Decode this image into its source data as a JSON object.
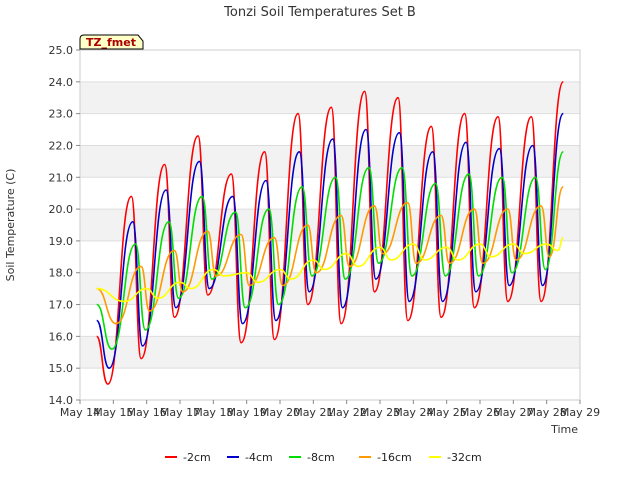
{
  "chart_data": {
    "type": "line",
    "title": "Tonzi Soil Temperatures Set B",
    "xlabel": "Time",
    "ylabel": "Soil Temperature (C)",
    "xlim": [
      "May 14",
      "May 29"
    ],
    "ylim": [
      14.0,
      25.0
    ],
    "x_ticks": [
      "May 14",
      "May 15",
      "May 16",
      "May 17",
      "May 18",
      "May 19",
      "May 20",
      "May 21",
      "May 22",
      "May 23",
      "May 24",
      "May 25",
      "May 26",
      "May 27",
      "May 28",
      "May 29"
    ],
    "y_ticks": [
      "14.0",
      "15.0",
      "16.0",
      "17.0",
      "18.0",
      "19.0",
      "20.0",
      "21.0",
      "22.0",
      "23.0",
      "24.0",
      "25.0"
    ],
    "grid": "horizontal bands",
    "legend_position": "bottom",
    "annotation": "TZ_fmet",
    "data_start": "May 14 12:00",
    "data_end": "May 28 12:00",
    "series": [
      {
        "name": "-2cm",
        "color": "#ff0000",
        "t": [
          "May 14 12:00",
          "May 14 20:00",
          "May 15 13:00",
          "May 15 20:00",
          "May 16 13:00",
          "May 16 20:00",
          "May 17 13:00",
          "May 17 20:00",
          "May 18 13:00",
          "May 18 20:00",
          "May 19 13:00",
          "May 19 20:00",
          "May 20 13:00",
          "May 20 20:00",
          "May 21 13:00",
          "May 21 20:00",
          "May 22 13:00",
          "May 22 20:00",
          "May 23 13:00",
          "May 23 20:00",
          "May 24 13:00",
          "May 24 20:00",
          "May 25 13:00",
          "May 25 20:00",
          "May 26 13:00",
          "May 26 20:00",
          "May 27 13:00",
          "May 27 20:00",
          "May 28 12:00"
        ],
        "v": [
          16.0,
          14.5,
          20.4,
          15.3,
          21.4,
          16.6,
          22.3,
          17.3,
          21.1,
          15.8,
          21.8,
          15.9,
          23.0,
          17.0,
          23.2,
          16.4,
          23.7,
          17.4,
          23.5,
          16.5,
          22.6,
          16.6,
          23.0,
          16.9,
          22.9,
          17.1,
          22.9,
          17.1,
          24.0
        ]
      },
      {
        "name": "-4cm",
        "color": "#0000cc",
        "t": [
          "May 14 12:00",
          "May 14 21:00",
          "May 15 14:00",
          "May 15 21:00",
          "May 16 14:00",
          "May 16 21:00",
          "May 17 14:00",
          "May 17 21:00",
          "May 18 14:00",
          "May 18 21:00",
          "May 19 14:00",
          "May 19 21:00",
          "May 20 14:00",
          "May 20 21:00",
          "May 21 14:00",
          "May 21 21:00",
          "May 22 14:00",
          "May 22 21:00",
          "May 23 14:00",
          "May 23 21:00",
          "May 24 14:00",
          "May 24 21:00",
          "May 25 14:00",
          "May 25 21:00",
          "May 26 14:00",
          "May 26 21:00",
          "May 27 14:00",
          "May 27 21:00",
          "May 28 12:00"
        ],
        "v": [
          16.5,
          15.0,
          19.6,
          15.7,
          20.6,
          16.9,
          21.5,
          17.5,
          20.4,
          16.4,
          20.9,
          16.5,
          21.8,
          17.4,
          22.2,
          16.9,
          22.5,
          17.8,
          22.4,
          17.1,
          21.8,
          17.1,
          22.1,
          17.4,
          21.9,
          17.6,
          22.0,
          17.6,
          23.0
        ]
      },
      {
        "name": "-8cm",
        "color": "#00dd00",
        "t": [
          "May 14 12:00",
          "May 14 23:00",
          "May 15 16:00",
          "May 15 23:00",
          "May 16 16:00",
          "May 16 23:00",
          "May 17 16:00",
          "May 17 23:00",
          "May 18 16:00",
          "May 18 23:00",
          "May 19 16:00",
          "May 19 23:00",
          "May 20 16:00",
          "May 20 23:00",
          "May 21 16:00",
          "May 21 23:00",
          "May 22 16:00",
          "May 22 23:00",
          "May 23 16:00",
          "May 23 23:00",
          "May 24 16:00",
          "May 24 23:00",
          "May 25 16:00",
          "May 25 23:00",
          "May 26 16:00",
          "May 26 23:00",
          "May 27 16:00",
          "May 27 23:00",
          "May 28 12:00"
        ],
        "v": [
          17.0,
          15.6,
          18.9,
          16.2,
          19.6,
          17.2,
          20.4,
          17.8,
          19.9,
          16.9,
          20.0,
          17.0,
          20.7,
          17.9,
          21.0,
          17.8,
          21.3,
          18.3,
          21.3,
          17.9,
          20.8,
          17.9,
          21.1,
          17.9,
          21.0,
          18.0,
          21.0,
          18.1,
          21.8
        ]
      },
      {
        "name": "-16cm",
        "color": "#ff9900",
        "t": [
          "May 14 12:00",
          "May 15 02:00",
          "May 15 20:00",
          "May 16 02:00",
          "May 16 20:00",
          "May 17 02:00",
          "May 17 20:00",
          "May 18 02:00",
          "May 18 20:00",
          "May 19 02:00",
          "May 19 20:00",
          "May 20 02:00",
          "May 20 20:00",
          "May 21 02:00",
          "May 21 20:00",
          "May 22 02:00",
          "May 22 20:00",
          "May 23 02:00",
          "May 23 20:00",
          "May 24 02:00",
          "May 24 20:00",
          "May 25 02:00",
          "May 25 20:00",
          "May 26 02:00",
          "May 26 20:00",
          "May 27 02:00",
          "May 27 20:00",
          "May 28 02:00",
          "May 28 12:00"
        ],
        "v": [
          17.5,
          16.4,
          18.2,
          16.8,
          18.7,
          17.4,
          19.3,
          17.9,
          19.2,
          17.6,
          19.1,
          17.6,
          19.5,
          18.0,
          19.8,
          18.2,
          20.1,
          18.6,
          20.2,
          18.3,
          19.8,
          18.3,
          20.0,
          18.3,
          20.0,
          18.4,
          20.1,
          18.5,
          20.7
        ]
      },
      {
        "name": "-32cm",
        "color": "#ffff00",
        "t": [
          "May 14 12:00",
          "May 15 08:00",
          "May 16 00:00",
          "May 16 08:00",
          "May 17 00:00",
          "May 17 08:00",
          "May 18 00:00",
          "May 18 08:00",
          "May 19 00:00",
          "May 19 08:00",
          "May 20 00:00",
          "May 20 08:00",
          "May 21 00:00",
          "May 21 08:00",
          "May 22 00:00",
          "May 22 08:00",
          "May 23 00:00",
          "May 23 08:00",
          "May 24 00:00",
          "May 24 08:00",
          "May 25 00:00",
          "May 25 08:00",
          "May 26 00:00",
          "May 26 08:00",
          "May 27 00:00",
          "May 27 08:00",
          "May 28 00:00",
          "May 28 08:00",
          "May 28 12:00"
        ],
        "v": [
          17.5,
          17.1,
          17.5,
          17.2,
          17.7,
          17.5,
          18.1,
          17.9,
          18.0,
          17.7,
          18.1,
          17.8,
          18.4,
          18.1,
          18.6,
          18.2,
          18.8,
          18.4,
          18.9,
          18.4,
          18.8,
          18.4,
          18.9,
          18.5,
          18.9,
          18.6,
          18.9,
          18.7,
          19.1
        ]
      }
    ]
  }
}
